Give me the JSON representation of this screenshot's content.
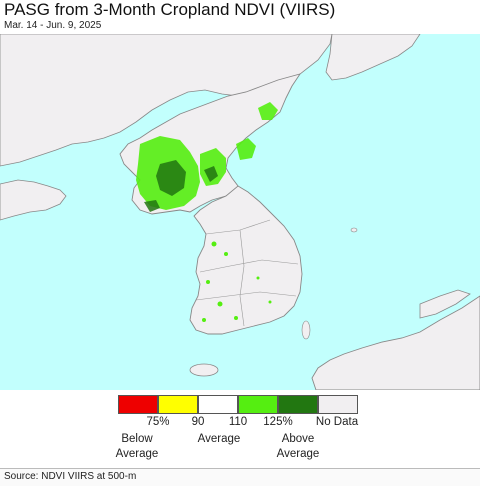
{
  "title": "PASG from 3-Month Cropland NDVI (VIIRS)",
  "subtitle": "Mar. 14 - Jun. 9, 2025",
  "colors": {
    "ocean": "#c2fffd",
    "land": "#f1eff1",
    "border": "#7a7a7a",
    "below_75": "#ee0000",
    "p75_90": "#ffff00",
    "p90_110": "#ffffff",
    "p110_125": "#55ee11",
    "above_125": "#227711",
    "no_data": "#f1eff1"
  },
  "legend": {
    "ticks": [
      "75%",
      "90",
      "110",
      "125%"
    ],
    "no_data_label": "No Data",
    "below_label": "Below\nAverage",
    "average_label": "Average",
    "above_label": "Above\nAverage"
  },
  "source": "Source: NDVI VIIRS at 500-m"
}
